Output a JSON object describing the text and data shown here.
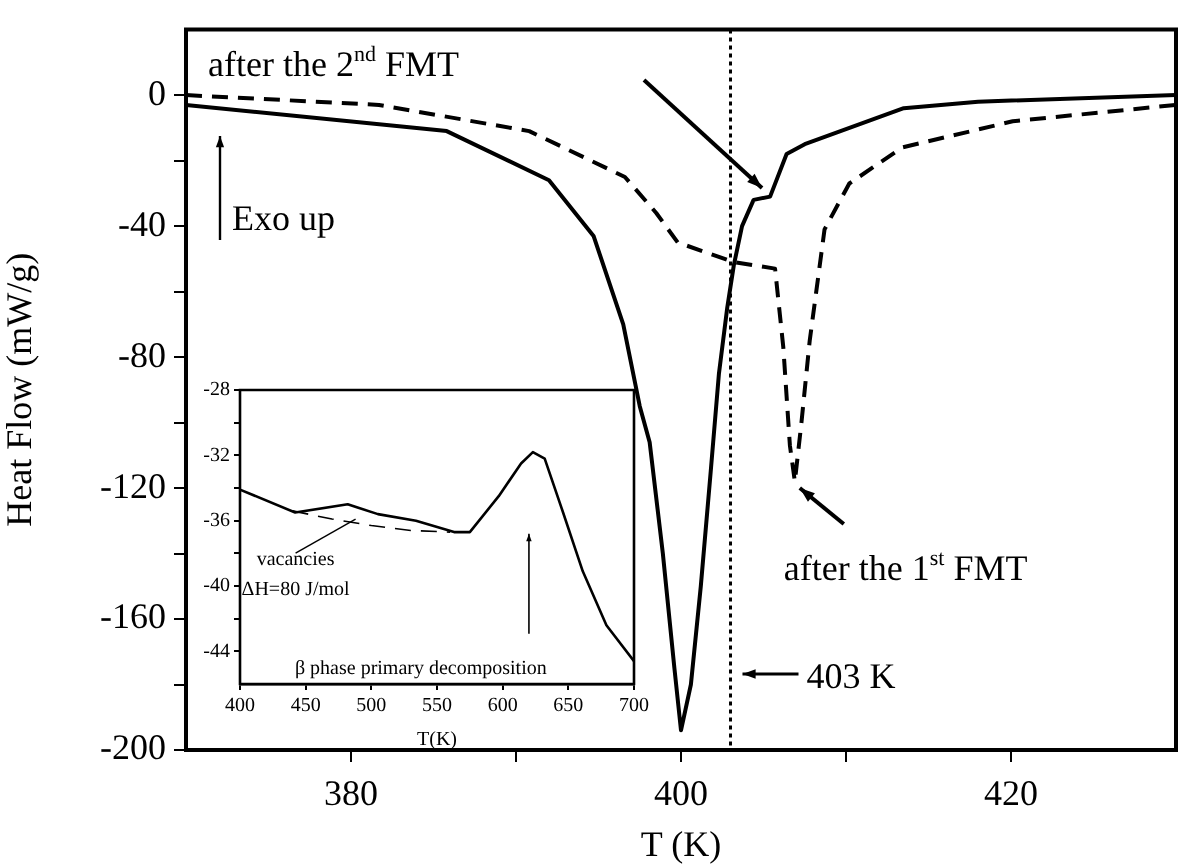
{
  "chart_data": [
    {
      "type": "line",
      "xlabel": "T (K)",
      "ylabel": "Heat Flow (mW/g)",
      "xlim": [
        370,
        430
      ],
      "ylim": [
        -200,
        20
      ],
      "xticks": [
        380,
        {
          "value": 390,
          "label": null
        },
        400,
        {
          "value": 410,
          "label": null
        },
        420
      ],
      "yticks": [
        -200,
        {
          "value": -180,
          "label": null
        },
        -160,
        {
          "value": -140,
          "label": null
        },
        -120,
        {
          "value": -100,
          "label": null
        },
        -80,
        {
          "value": -60,
          "label": null
        },
        -40,
        {
          "value": -20,
          "label": null
        },
        0
      ],
      "series": [
        {
          "color": "#000000",
          "line_style": "solid",
          "x": [
            370,
            385.8,
            392,
            394.7,
            396.5,
            397.5,
            398.1,
            398.9,
            399.6,
            400,
            400.6,
            401.2,
            401.8,
            402.3,
            402.8,
            403.2,
            403.7,
            404.4,
            405.4,
            406.4,
            407.5,
            413.5,
            418,
            430
          ],
          "values": [
            -3,
            -11,
            -26,
            -43,
            -70,
            -95,
            -106,
            -140,
            -175,
            -194,
            -180,
            -150,
            -115,
            -85,
            -65,
            -52,
            -40,
            -32,
            -31,
            -18,
            -15,
            -4,
            -2,
            0
          ]
        },
        {
          "color": "#000000",
          "line_style": "dashed",
          "x": [
            370,
            381.7,
            390.8,
            396.6,
            398.5,
            399.8,
            403.2,
            405.7,
            406.2,
            406.6,
            406.9,
            407.3,
            407.8,
            408.7,
            410.2,
            413.4,
            420.1,
            430
          ],
          "values": [
            0,
            -3,
            -11,
            -25,
            -36,
            -45,
            -51,
            -53,
            -77,
            -107,
            -118,
            -100,
            -75,
            -41,
            -27,
            -16,
            -8,
            -3
          ]
        }
      ],
      "ref_lines": [
        {
          "axis": "x",
          "value": 403,
          "label": "403 K",
          "line_style": "dotted",
          "color": "#000000"
        }
      ],
      "annotations": [
        "after the 2$^{nd}$ FMT",
        {
          "text": "after the 1$^{st}$ FMT",
          "x": 407.2,
          "y": -120
        },
        "Exo up"
      ]
    },
    {
      "type": "line",
      "xlabel": "T(K)",
      "xlim": [
        400,
        700
      ],
      "ylim": [
        -46,
        -28
      ],
      "xticks": [
        400,
        450,
        500,
        550,
        600,
        650,
        700
      ],
      "yticks": [
        -44,
        {
          "value": -42,
          "label": null
        },
        -40,
        {
          "value": -38,
          "label": null
        },
        -36,
        {
          "value": -34,
          "label": null
        },
        -32,
        {
          "value": -30,
          "label": null
        },
        -28
      ],
      "series": [
        {
          "color": "#000000",
          "line_style": "solid",
          "x": [
            400,
            442,
            482,
            505,
            534,
            563,
            575,
            597,
            614,
            623,
            632,
            646,
            661,
            679,
            700
          ],
          "values": [
            -34.1,
            -35.5,
            -35,
            -35.6,
            -36,
            -36.7,
            -36.7,
            -34.5,
            -32.5,
            -31.8,
            -32.2,
            -35.5,
            -39.1,
            -42.4,
            -44.6
          ]
        },
        {
          "color": "#000000",
          "line_style": "dashed",
          "x": [
            440,
            470,
            500,
            530,
            560
          ],
          "values": [
            -35.4,
            -35.9,
            -36.3,
            -36.6,
            -36.7
          ]
        }
      ],
      "annotations": [
        {
          "text": "vacancies\nΔH=80 J/mol",
          "x": 488,
          "y": -35.9
        },
        {
          "text": "β phase primary decomposition",
          "x": 620,
          "y": -36.8
        }
      ]
    }
  ]
}
